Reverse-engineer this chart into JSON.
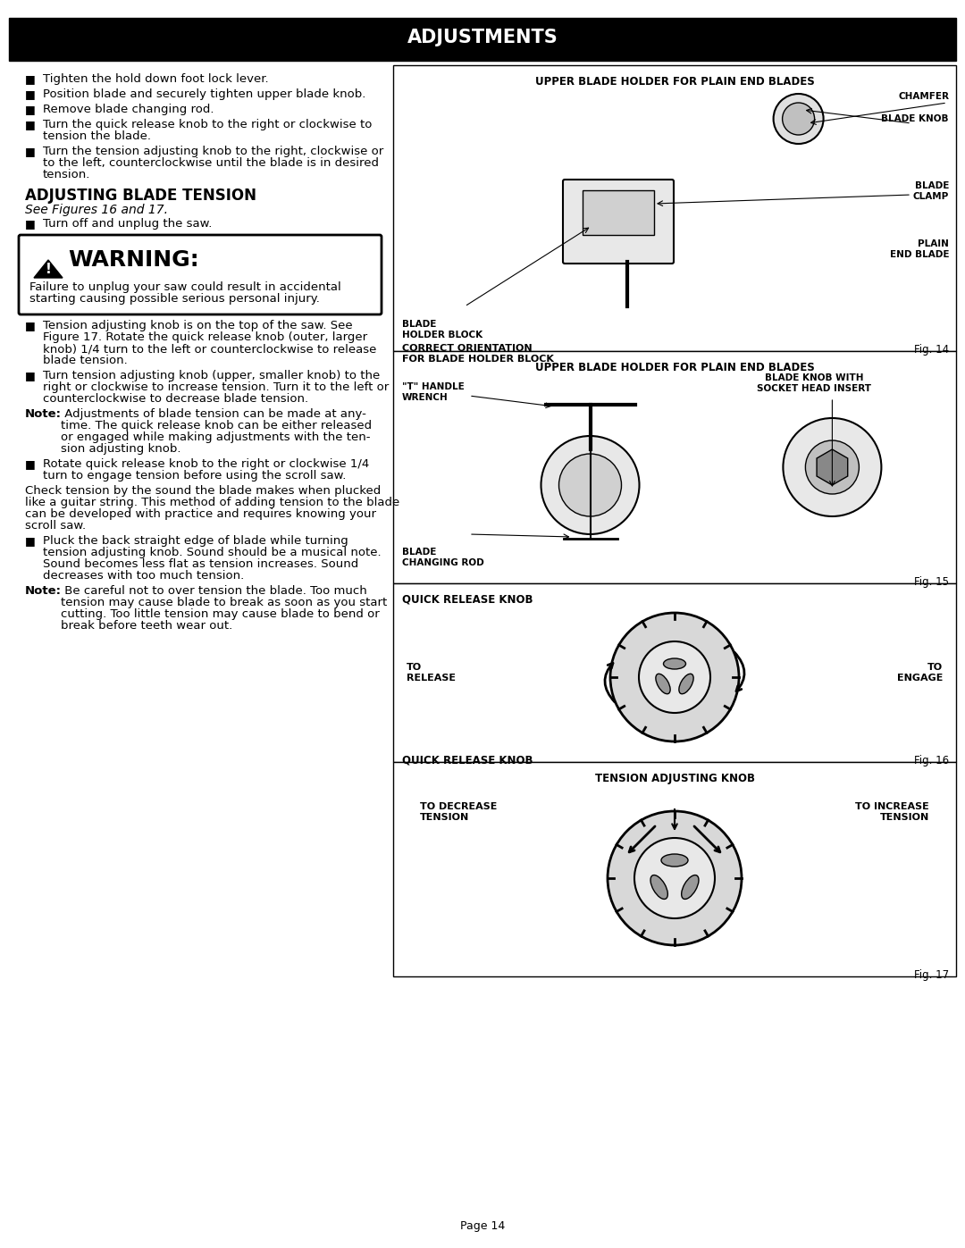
{
  "title": "ADJUSTMENTS",
  "page_number": "Page 14",
  "background_color": "#ffffff",
  "title_bg_color": "#000000",
  "title_text_color": "#ffffff",
  "left_column": {
    "bullet_items": [
      "Tighten the hold down foot lock lever.",
      "Position blade and securely tighten upper blade knob.",
      "Remove blade changing rod.",
      "Turn the quick release knob to the right or clockwise to\ntension the blade.",
      "Turn the tension adjusting knob to the right, clockwise or\nto the left, counterclockwise until the blade is in desired\ntension."
    ],
    "section_heading": "ADJUSTING BLADE TENSION",
    "section_subheading": "See Figures 16 and 17.",
    "section_bullet": "Turn off and unplug the saw.",
    "warning_text": "WARNING:",
    "warning_body": "Failure to unplug your saw could result in accidental\nstarting causing possible serious personal injury.",
    "body_paragraphs": [
      {
        "bullet": true,
        "text": "Tension adjusting knob is on the top of the saw. See\nFigure 17. Rotate the quick release knob (outer, larger\nknob) 1/4 turn to the left or counterclockwise to release\nblade tension."
      },
      {
        "bullet": true,
        "text": "Turn tension adjusting knob (upper, smaller knob) to the\nright or clockwise to increase tension. Turn it to the left or\ncounterclockwise to decrease blade tension."
      },
      {
        "bullet": false,
        "bold_prefix": "Note:",
        "text": " Adjustments of blade tension can be made at any-\ntime. The quick release knob can be either released\nor engaged while making adjustments with the ten-\nsion adjusting knob."
      },
      {
        "bullet": true,
        "text": "Rotate quick release knob to the right or clockwise 1/4\nturn to engage tension before using the scroll saw."
      },
      {
        "bullet": false,
        "text": "Check tension by the sound the blade makes when plucked\nlike a guitar string. This method of adding tension to the blade\ncan be developed with practice and requires knowing your\nscroll saw."
      },
      {
        "bullet": true,
        "text": "Pluck the back straight edge of blade while turning\ntension adjusting knob. Sound should be a musical note.\nSound becomes less flat as tension increases. Sound\ndecreases with too much tension."
      },
      {
        "bullet": false,
        "bold_prefix": "Note:",
        "text": " Be careful not to over tension the blade. Too much\ntension may cause blade to break as soon as you start\ncutting. Too little tension may cause blade to bend or\nbreak before teeth wear out."
      }
    ]
  },
  "right_panels": [
    {
      "label": "UPPER BLADE HOLDER FOR PLAIN END BLADES",
      "fig_label": "Fig. 14",
      "annotations": [
        "CHAMFER",
        "BLADE KNOB",
        "BLADE\nCLAMP",
        "PLAIN\nEND BLADE",
        "BLADE\nHOLDER BLOCK"
      ],
      "caption": "CORRECT ORIENTATION\nFOR BLADE HOLDER BLOCK"
    },
    {
      "label": "UPPER BLADE HOLDER FOR PLAIN END BLADES",
      "fig_label": "Fig. 15",
      "annotations": [
        "BLADE KNOB WITH\nSOCKET HEAD INSERT",
        "\"T\" HANDLE\nWRENCH",
        "BLADE\nCHANGING ROD"
      ]
    },
    {
      "label": "QUICK RELEASE KNOB",
      "fig_label": "Fig. 16",
      "annotations": [
        "TO\nRELEASE",
        "TO\nENGAGE"
      ]
    },
    {
      "label": "TENSION ADJUSTING KNOB",
      "fig_label": "Fig. 17",
      "annotations": [
        "TO DECREASE\nTENSION",
        "TO INCREASE\nTENSION"
      ]
    }
  ]
}
